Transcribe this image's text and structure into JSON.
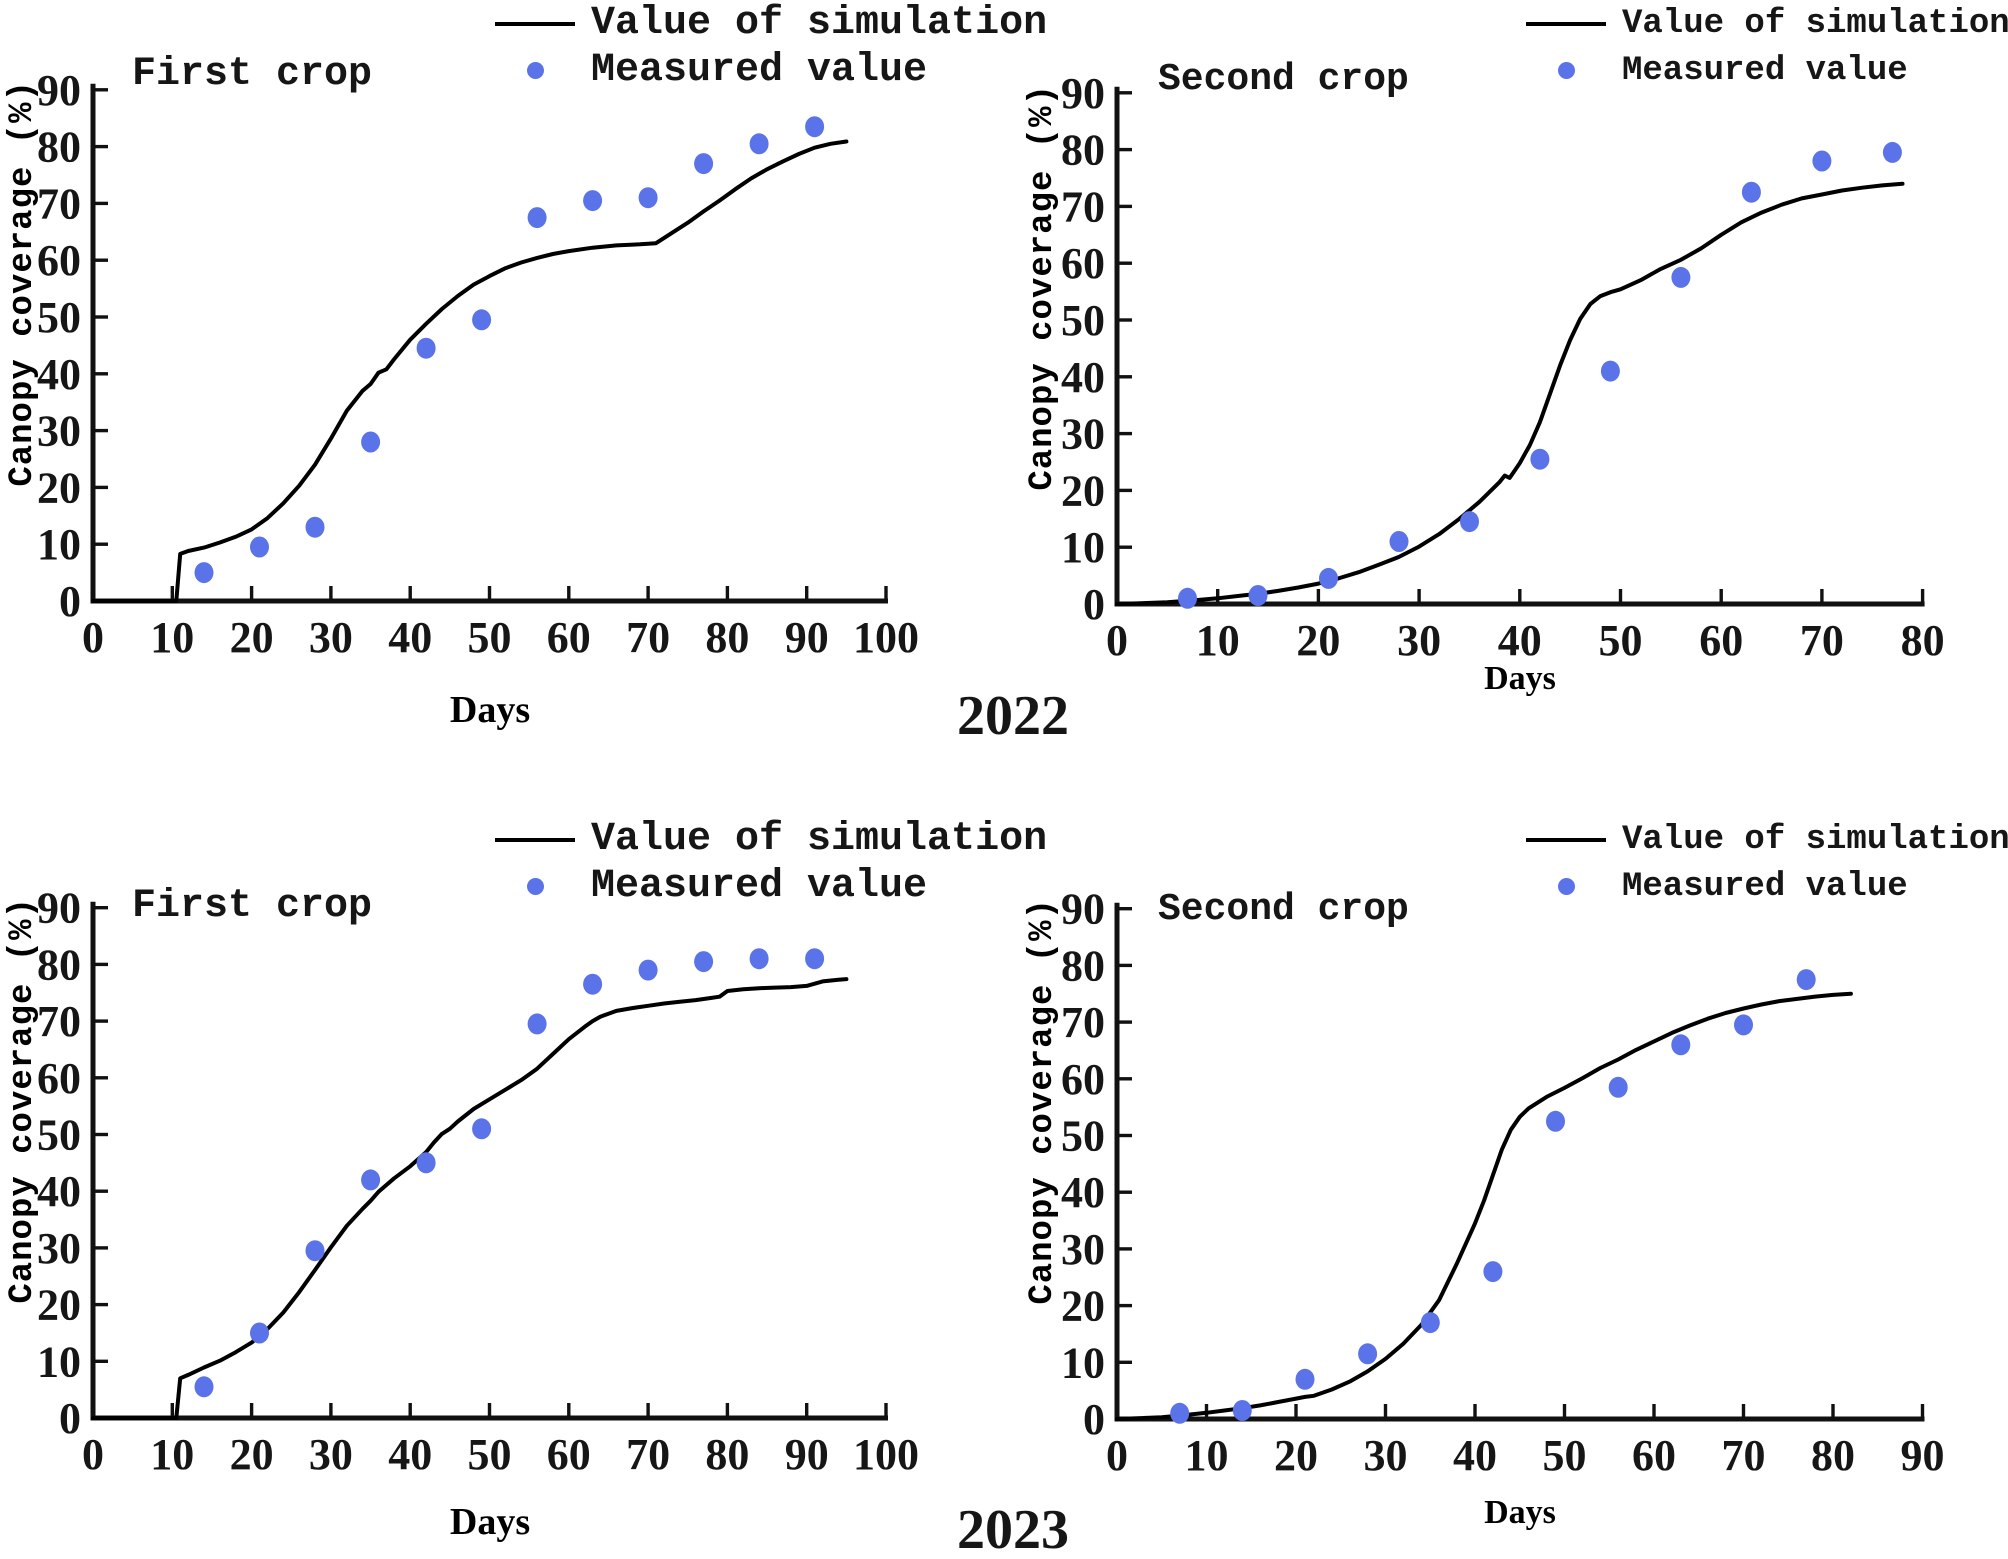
{
  "year_labels": [
    "2022",
    "2023"
  ],
  "axis": {
    "x_label": "Days",
    "y_label": "Canopy coverage (%)"
  },
  "legend": {
    "line_label": "Value of simulation",
    "dot_label": "Measured value"
  },
  "colors": {
    "simulation_line": "#000000",
    "measured_dot": "#5b73e8",
    "text": "#161616"
  },
  "chart_data": [
    {
      "type": "line",
      "title": "First crop",
      "year": "2022",
      "xlabel": "Days",
      "ylabel": "Canopy coverage (%)",
      "xlim": [
        0,
        100
      ],
      "ylim": [
        0,
        90
      ],
      "xtick_step": 10,
      "ytick_step": 10,
      "legend_position": "top-right",
      "series": [
        {
          "name": "Value of simulation",
          "type": "line",
          "color": "#000000",
          "points": [
            [
              0,
              0
            ],
            [
              10.5,
              0
            ],
            [
              11,
              8.3
            ],
            [
              12,
              8.8
            ],
            [
              14,
              9.4
            ],
            [
              16,
              10.3
            ],
            [
              18,
              11.3
            ],
            [
              20,
              12.6
            ],
            [
              22,
              14.6
            ],
            [
              24,
              17.2
            ],
            [
              26,
              20.3
            ],
            [
              28,
              24
            ],
            [
              30,
              28.6
            ],
            [
              32,
              33.5
            ],
            [
              34,
              37
            ],
            [
              35,
              38.2
            ],
            [
              36,
              40.2
            ],
            [
              37,
              40.8
            ],
            [
              38,
              42.6
            ],
            [
              40,
              46
            ],
            [
              42,
              48.8
            ],
            [
              44,
              51.4
            ],
            [
              46,
              53.7
            ],
            [
              48,
              55.7
            ],
            [
              50,
              57.2
            ],
            [
              52,
              58.6
            ],
            [
              54,
              59.6
            ],
            [
              56,
              60.4
            ],
            [
              58,
              61.1
            ],
            [
              60,
              61.6
            ],
            [
              63,
              62.2
            ],
            [
              66,
              62.6
            ],
            [
              69,
              62.8
            ],
            [
              71,
              63
            ],
            [
              73,
              64.8
            ],
            [
              75,
              66.6
            ],
            [
              77,
              68.6
            ],
            [
              79,
              70.5
            ],
            [
              81,
              72.5
            ],
            [
              83,
              74.4
            ],
            [
              85,
              76
            ],
            [
              87,
              77.4
            ],
            [
              89,
              78.7
            ],
            [
              91,
              79.8
            ],
            [
              93,
              80.5
            ],
            [
              95,
              80.9
            ]
          ]
        },
        {
          "name": "Measured value",
          "type": "scatter",
          "color": "#5b73e8",
          "points": [
            [
              14,
              5
            ],
            [
              21,
              9.5
            ],
            [
              28,
              13
            ],
            [
              35,
              28
            ],
            [
              42,
              44.5
            ],
            [
              49,
              49.5
            ],
            [
              56,
              67.5
            ],
            [
              63,
              70.5
            ],
            [
              70,
              71
            ],
            [
              77,
              77
            ],
            [
              84,
              80.5
            ],
            [
              91,
              83.5
            ]
          ]
        }
      ]
    },
    {
      "type": "line",
      "title": "Second crop",
      "year": "2022",
      "xlabel": "Days",
      "ylabel": "Canopy coverage (%)",
      "xlim": [
        0,
        80
      ],
      "ylim": [
        0,
        90
      ],
      "xtick_step": 10,
      "ytick_step": 10,
      "legend_position": "top-right",
      "series": [
        {
          "name": "Value of simulation",
          "type": "line",
          "color": "#000000",
          "points": [
            [
              0,
              0
            ],
            [
              5,
              0.3
            ],
            [
              8,
              0.7
            ],
            [
              10,
              1
            ],
            [
              12,
              1.4
            ],
            [
              14,
              1.8
            ],
            [
              16,
              2.3
            ],
            [
              18,
              2.9
            ],
            [
              20,
              3.6
            ],
            [
              22,
              4.5
            ],
            [
              24,
              5.6
            ],
            [
              26,
              6.9
            ],
            [
              28,
              8.3
            ],
            [
              30,
              10.1
            ],
            [
              32,
              12.3
            ],
            [
              34,
              15
            ],
            [
              36,
              18
            ],
            [
              38,
              21.5
            ],
            [
              38.5,
              22.6
            ],
            [
              39,
              22.2
            ],
            [
              40,
              24.8
            ],
            [
              41,
              28
            ],
            [
              42,
              32
            ],
            [
              43,
              37
            ],
            [
              44,
              42
            ],
            [
              45,
              46.5
            ],
            [
              46,
              50.2
            ],
            [
              47,
              52.8
            ],
            [
              48,
              54.2
            ],
            [
              49,
              54.9
            ],
            [
              50,
              55.4
            ],
            [
              52,
              57
            ],
            [
              54,
              59
            ],
            [
              56,
              60.6
            ],
            [
              58,
              62.6
            ],
            [
              60,
              65
            ],
            [
              62,
              67.2
            ],
            [
              64,
              68.9
            ],
            [
              66,
              70.3
            ],
            [
              68,
              71.4
            ],
            [
              70,
              72.1
            ],
            [
              72,
              72.8
            ],
            [
              74,
              73.3
            ],
            [
              76,
              73.7
            ],
            [
              78,
              74
            ]
          ]
        },
        {
          "name": "Measured value",
          "type": "scatter",
          "color": "#5b73e8",
          "points": [
            [
              7,
              1
            ],
            [
              14,
              1.5
            ],
            [
              21,
              4.5
            ],
            [
              28,
              11
            ],
            [
              35,
              14.5
            ],
            [
              42,
              25.5
            ],
            [
              49,
              41
            ],
            [
              56,
              57.5
            ],
            [
              63,
              72.5
            ],
            [
              70,
              78
            ],
            [
              77,
              79.5
            ]
          ]
        }
      ]
    },
    {
      "type": "line",
      "title": "First crop",
      "year": "2023",
      "xlabel": "Days",
      "ylabel": "Canopy coverage (%)",
      "xlim": [
        0,
        100
      ],
      "ylim": [
        0,
        90
      ],
      "xtick_step": 10,
      "ytick_step": 10,
      "legend_position": "top-right",
      "series": [
        {
          "name": "Value of simulation",
          "type": "line",
          "color": "#000000",
          "points": [
            [
              0,
              0
            ],
            [
              10.5,
              0
            ],
            [
              11,
              7
            ],
            [
              12,
              7.6
            ],
            [
              14,
              8.9
            ],
            [
              16,
              10.1
            ],
            [
              18,
              11.6
            ],
            [
              20,
              13.3
            ],
            [
              22,
              15.7
            ],
            [
              24,
              18.6
            ],
            [
              26,
              22.2
            ],
            [
              28,
              26.1
            ],
            [
              30,
              30.1
            ],
            [
              32,
              33.9
            ],
            [
              34,
              36.9
            ],
            [
              35,
              38.3
            ],
            [
              36,
              39.9
            ],
            [
              38,
              42.3
            ],
            [
              40,
              44.4
            ],
            [
              42,
              46.9
            ],
            [
              43,
              48.6
            ],
            [
              44,
              50.1
            ],
            [
              45,
              51
            ],
            [
              46,
              52.3
            ],
            [
              48,
              54.5
            ],
            [
              50,
              56.2
            ],
            [
              52,
              57.9
            ],
            [
              54,
              59.6
            ],
            [
              56,
              61.6
            ],
            [
              58,
              64.2
            ],
            [
              60,
              66.8
            ],
            [
              62,
              69
            ],
            [
              63,
              70
            ],
            [
              64,
              70.8
            ],
            [
              66,
              71.8
            ],
            [
              68,
              72.3
            ],
            [
              70,
              72.7
            ],
            [
              72,
              73.1
            ],
            [
              74,
              73.4
            ],
            [
              76,
              73.7
            ],
            [
              78,
              74.1
            ],
            [
              79,
              74.3
            ],
            [
              80,
              75.3
            ],
            [
              82,
              75.6
            ],
            [
              84,
              75.8
            ],
            [
              86,
              75.9
            ],
            [
              88,
              76
            ],
            [
              90,
              76.2
            ],
            [
              92,
              77
            ],
            [
              94,
              77.3
            ],
            [
              95,
              77.4
            ]
          ]
        },
        {
          "name": "Measured value",
          "type": "scatter",
          "color": "#5b73e8",
          "points": [
            [
              14,
              5.5
            ],
            [
              21,
              15
            ],
            [
              28,
              29.5
            ],
            [
              35,
              42
            ],
            [
              42,
              45
            ],
            [
              49,
              51
            ],
            [
              56,
              69.5
            ],
            [
              63,
              76.5
            ],
            [
              70,
              79
            ],
            [
              77,
              80.5
            ],
            [
              84,
              81
            ],
            [
              91,
              81
            ]
          ]
        }
      ]
    },
    {
      "type": "line",
      "title": "Second crop",
      "year": "2023",
      "xlabel": "Days",
      "ylabel": "Canopy coverage (%)",
      "xlim": [
        0,
        90
      ],
      "ylim": [
        0,
        90
      ],
      "xtick_step": 10,
      "ytick_step": 10,
      "legend_position": "top-right",
      "series": [
        {
          "name": "Value of simulation",
          "type": "line",
          "color": "#000000",
          "points": [
            [
              0,
              0
            ],
            [
              5,
              0.3
            ],
            [
              7,
              0.6
            ],
            [
              10,
              1.1
            ],
            [
              12,
              1.5
            ],
            [
              14,
              1.9
            ],
            [
              16,
              2.4
            ],
            [
              18,
              3
            ],
            [
              20,
              3.6
            ],
            [
              21,
              3.9
            ],
            [
              22,
              4.1
            ],
            [
              24,
              5.2
            ],
            [
              26,
              6.6
            ],
            [
              28,
              8.4
            ],
            [
              30,
              10.6
            ],
            [
              32,
              13.3
            ],
            [
              34,
              16.6
            ],
            [
              36,
              21
            ],
            [
              38,
              27.5
            ],
            [
              40,
              34.5
            ],
            [
              41,
              38.5
            ],
            [
              42,
              43
            ],
            [
              43,
              47.5
            ],
            [
              44,
              51
            ],
            [
              45,
              53.3
            ],
            [
              46,
              54.8
            ],
            [
              48,
              56.8
            ],
            [
              50,
              58.4
            ],
            [
              52,
              60.1
            ],
            [
              54,
              61.9
            ],
            [
              56,
              63.4
            ],
            [
              58,
              65.1
            ],
            [
              60,
              66.6
            ],
            [
              62,
              68.1
            ],
            [
              64,
              69.4
            ],
            [
              66,
              70.6
            ],
            [
              68,
              71.6
            ],
            [
              70,
              72.4
            ],
            [
              72,
              73.1
            ],
            [
              74,
              73.7
            ],
            [
              76,
              74.1
            ],
            [
              78,
              74.5
            ],
            [
              80,
              74.8
            ],
            [
              82,
              75
            ]
          ]
        },
        {
          "name": "Measured value",
          "type": "scatter",
          "color": "#5b73e8",
          "points": [
            [
              7,
              1
            ],
            [
              14,
              1.5
            ],
            [
              21,
              7
            ],
            [
              28,
              11.5
            ],
            [
              35,
              17
            ],
            [
              42,
              26
            ],
            [
              49,
              52.5
            ],
            [
              56,
              58.5
            ],
            [
              63,
              66
            ],
            [
              70,
              69.5
            ],
            [
              77,
              77.5
            ]
          ]
        }
      ]
    }
  ]
}
